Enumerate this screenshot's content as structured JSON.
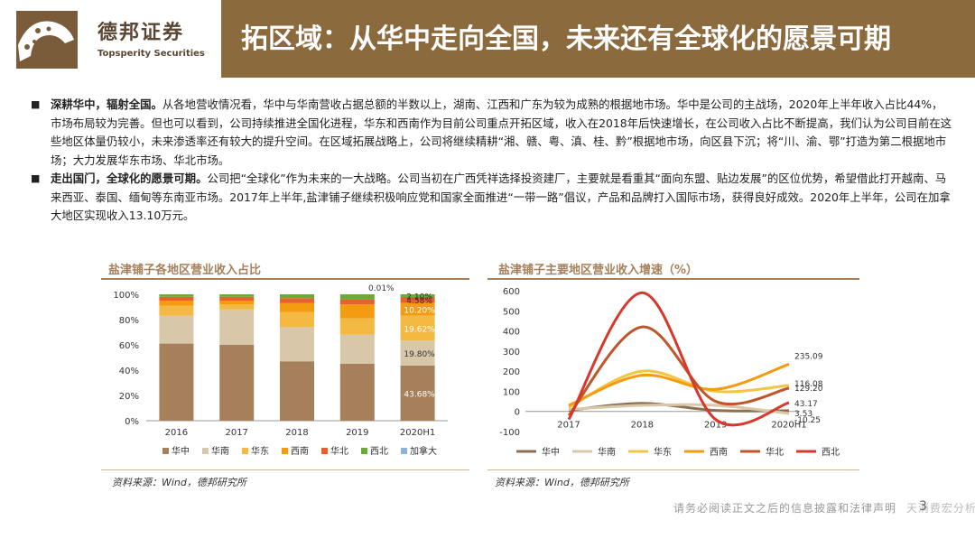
{
  "header": {
    "brand_cn": "德邦证券",
    "brand_en": "Topsperity Securities",
    "title": "拓区域：从华中走向全国，未来还有全球化的愿景可期"
  },
  "paragraphs": [
    {
      "lead": "深耕华中，辐射全国。",
      "text": "从各地营收情况看，华中与华南营收占据总额的半数以上，湖南、江西和广东为较为成熟的根据地市场。华中是公司的主战场，2020年上半年收入占比44%，市场布局较为完善。但也可以看到，公司持续推进全国化进程，华东和西南作为目前公司重点开拓区域，收入在2018年后快速增长，在公司收入占比不断提高，我们认为公司目前在这些地区体量仍较小，未来渗透率还有较大的提升空间。在区域拓展战略上，公司将继续精耕“湘、赣、粤、滇、桂、黔”根据地市场，向区县下沉；将“川、渝、鄂”打造为第二根据地市场；大力发展华东市场、华北市场。"
    },
    {
      "lead": "走出国门，全球化的愿景可期。",
      "text": "公司把“全球化”作为未来的一大战略。公司当初在广西凭祥选择投资建厂，主要就是看重其“面向东盟、贴边发展”的区位优势，希望借此打开越南、马来西亚、泰国、缅甸等东南亚市场。2017年上半年,盐津铺子继续积极响应党和国家全面推进“一带一路”倡议，产品和品牌打入国际市场，获得良好成效。2020年上半年，公司在加拿大地区实现收入13.10万元。"
    }
  ],
  "chart_data": [
    {
      "type": "bar",
      "stacked": true,
      "title": "盐津铺子各地区营业收入占比",
      "categories": [
        "2016",
        "2017",
        "2018",
        "2019",
        "2020H1"
      ],
      "y_ticks": [
        "0%",
        "20%",
        "40%",
        "60%",
        "80%",
        "100%"
      ],
      "ylim": [
        0,
        100
      ],
      "series": [
        {
          "name": "华中",
          "color": "#a5805a",
          "values": [
            61,
            60,
            47,
            45,
            43.68
          ]
        },
        {
          "name": "华南",
          "color": "#d9c7aa",
          "values": [
            22,
            28,
            27,
            23,
            19.8
          ]
        },
        {
          "name": "华东",
          "color": "#f4b942",
          "values": [
            8,
            4,
            12,
            13,
            19.62
          ]
        },
        {
          "name": "西南",
          "color": "#f39c12",
          "values": [
            4,
            3,
            7,
            11,
            10.2
          ]
        },
        {
          "name": "华北",
          "color": "#e8612c",
          "values": [
            3,
            3,
            4,
            4,
            4.58
          ]
        },
        {
          "name": "西北",
          "color": "#6aaa3a",
          "values": [
            2,
            2,
            3,
            4,
            2.1
          ]
        },
        {
          "name": "加拿大",
          "color": "#8fb4d8",
          "values": [
            0,
            0,
            0,
            0,
            0.01
          ]
        }
      ],
      "labels_2020H1": [
        "43.68%",
        "19.80%",
        "19.62%",
        "10.20%",
        "4.58%",
        "2.10%",
        "0.01%"
      ],
      "source": "资料来源：Wind，德邦研究所"
    },
    {
      "type": "line",
      "title": "盐津铺子主要地区营业收入增速（%）",
      "categories": [
        "2017",
        "2018",
        "2019",
        "2020H1"
      ],
      "y_ticks": [
        "-100",
        "0",
        "100",
        "200",
        "300",
        "400",
        "500",
        "600"
      ],
      "ylim": [
        -100,
        600
      ],
      "series": [
        {
          "name": "华中",
          "color": "#8c6f52",
          "values": [
            5,
            40,
            5,
            3.53
          ]
        },
        {
          "name": "华南",
          "color": "#d9c7aa",
          "values": [
            10,
            30,
            30,
            -10.25
          ]
        },
        {
          "name": "华东",
          "color": "#f4c542",
          "values": [
            20,
            200,
            100,
            129.2
          ]
        },
        {
          "name": "西南",
          "color": "#f39c12",
          "values": [
            30,
            180,
            110,
            235.09
          ]
        },
        {
          "name": "华北",
          "color": "#c0552a",
          "values": [
            -20,
            420,
            50,
            116.08
          ]
        },
        {
          "name": "西北",
          "color": "#d9362c",
          "values": [
            -40,
            590,
            -40,
            43.17
          ]
        }
      ],
      "end_labels": [
        "235.09",
        "116.08",
        "129.20",
        "43.17",
        "3.53",
        "-10.25"
      ],
      "source": "资料来源：Wind，德邦研究所"
    }
  ],
  "footer": {
    "disclaimer": "请务必阅读正文之后的信息披露和法律声明",
    "watermark": "天消费宏分析师 伟",
    "page": "3"
  }
}
